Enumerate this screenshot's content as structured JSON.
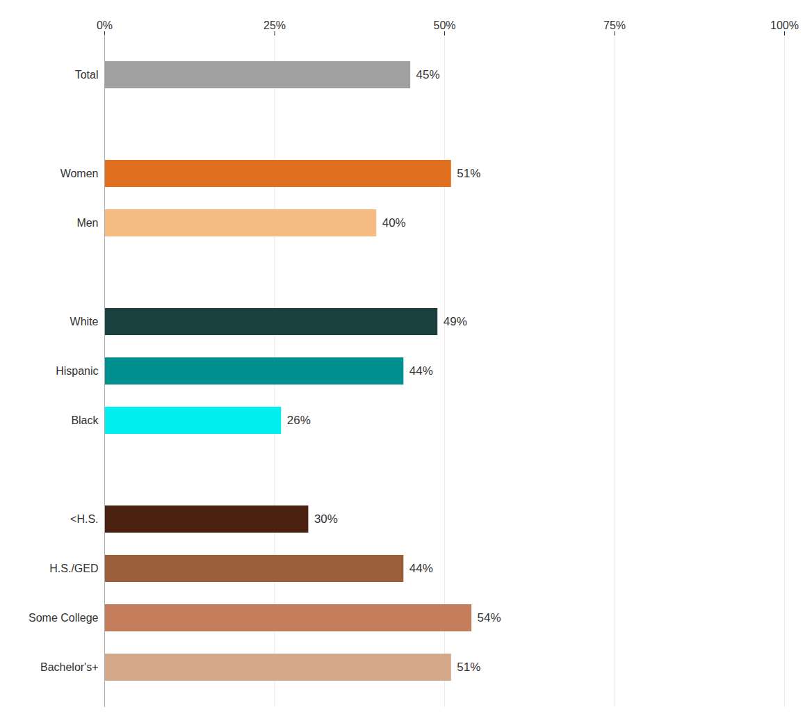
{
  "chart_data": {
    "type": "bar",
    "orientation": "horizontal",
    "categories": [
      "Bachelor's+",
      "Some College",
      "H.S./GED",
      "<H.S.",
      null,
      "Black",
      "Hispanic",
      "White",
      null,
      "Men",
      "Women",
      null,
      "Total"
    ],
    "values": [
      51,
      54,
      44,
      30,
      0,
      26,
      44,
      49,
      0,
      40,
      51,
      0,
      45
    ],
    "value_labels": [
      "51%",
      "54%",
      "44%",
      "30%",
      null,
      "26%",
      "44%",
      "49%",
      null,
      "40%",
      "51%",
      null,
      "45%"
    ],
    "colors": [
      "#d4a98a",
      "#c47d5a",
      "#9b5e3a",
      "#4a2010",
      "#ffffff",
      "#00eeee",
      "#009090",
      "#1a4040",
      "#ffffff",
      "#f5bb80",
      "#e07020",
      "#ffffff",
      "#a0a0a0"
    ],
    "data_labels": true,
    "xlim": [
      0,
      100
    ],
    "xticks": [
      {
        "value": 0,
        "label": "0%"
      },
      {
        "value": 25,
        "label": "25%"
      },
      {
        "value": 50,
        "label": "50%"
      },
      {
        "value": 75,
        "label": "75%"
      },
      {
        "value": 100,
        "label": "100%"
      }
    ],
    "grid": true
  }
}
